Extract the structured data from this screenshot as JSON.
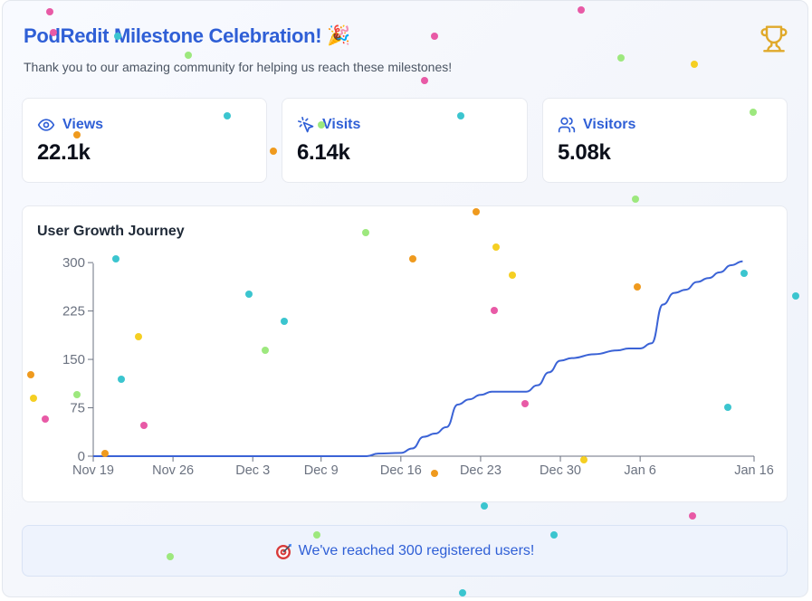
{
  "header": {
    "title": "PodRedit Milestone Celebration!",
    "title_emoji": "🎉",
    "subtitle": "Thank you to our amazing community for helping us reach these milestones!",
    "trophy_icon": "trophy-icon"
  },
  "stats": [
    {
      "label": "Views",
      "value": "22.1k",
      "icon": "eye-icon"
    },
    {
      "label": "Visits",
      "value": "6.14k",
      "icon": "cursor-click-icon"
    },
    {
      "label": "Visitors",
      "value": "5.08k",
      "icon": "users-icon"
    }
  ],
  "chart": {
    "title": "User Growth Journey"
  },
  "chart_data": {
    "type": "line",
    "title": "User Growth Journey",
    "xlabel": "",
    "ylabel": "",
    "x_ticks": [
      "Nov 19",
      "Nov 26",
      "Dec 3",
      "Dec 9",
      "Dec 16",
      "Dec 23",
      "Dec 30",
      "Jan 6",
      "Jan 16"
    ],
    "y_ticks": [
      0,
      75,
      150,
      225,
      300
    ],
    "ylim": [
      0,
      310
    ],
    "series": [
      {
        "name": "Registered users",
        "color": "#3b63d6",
        "points": [
          {
            "day": 0,
            "value": 0
          },
          {
            "day": 10,
            "value": 0
          },
          {
            "day": 20,
            "value": 0
          },
          {
            "day": 24,
            "value": 0
          },
          {
            "day": 25,
            "value": 4
          },
          {
            "day": 27,
            "value": 5
          },
          {
            "day": 28,
            "value": 12
          },
          {
            "day": 29,
            "value": 30
          },
          {
            "day": 30,
            "value": 35
          },
          {
            "day": 31,
            "value": 45
          },
          {
            "day": 32,
            "value": 80
          },
          {
            "day": 33,
            "value": 88
          },
          {
            "day": 34,
            "value": 95
          },
          {
            "day": 35,
            "value": 100
          },
          {
            "day": 36,
            "value": 100
          },
          {
            "day": 38,
            "value": 100
          },
          {
            "day": 39,
            "value": 110
          },
          {
            "day": 40,
            "value": 130
          },
          {
            "day": 41,
            "value": 148
          },
          {
            "day": 42,
            "value": 152
          },
          {
            "day": 44,
            "value": 158
          },
          {
            "day": 46,
            "value": 164
          },
          {
            "day": 47,
            "value": 167
          },
          {
            "day": 48,
            "value": 167
          },
          {
            "day": 49,
            "value": 175
          },
          {
            "day": 50,
            "value": 235
          },
          {
            "day": 51,
            "value": 253
          },
          {
            "day": 52,
            "value": 258
          },
          {
            "day": 53,
            "value": 270
          },
          {
            "day": 54,
            "value": 276
          },
          {
            "day": 55,
            "value": 285
          },
          {
            "day": 56,
            "value": 296
          },
          {
            "day": 57,
            "value": 302
          }
        ]
      }
    ]
  },
  "banner": {
    "icon": "target-icon",
    "text": "We've reached 300 registered users!"
  },
  "confetti_colors": {
    "pink": "#e85aa6",
    "teal": "#3bc5cf",
    "orange": "#ef9a1e",
    "yellow": "#f5cf22",
    "green": "#9de87e"
  }
}
